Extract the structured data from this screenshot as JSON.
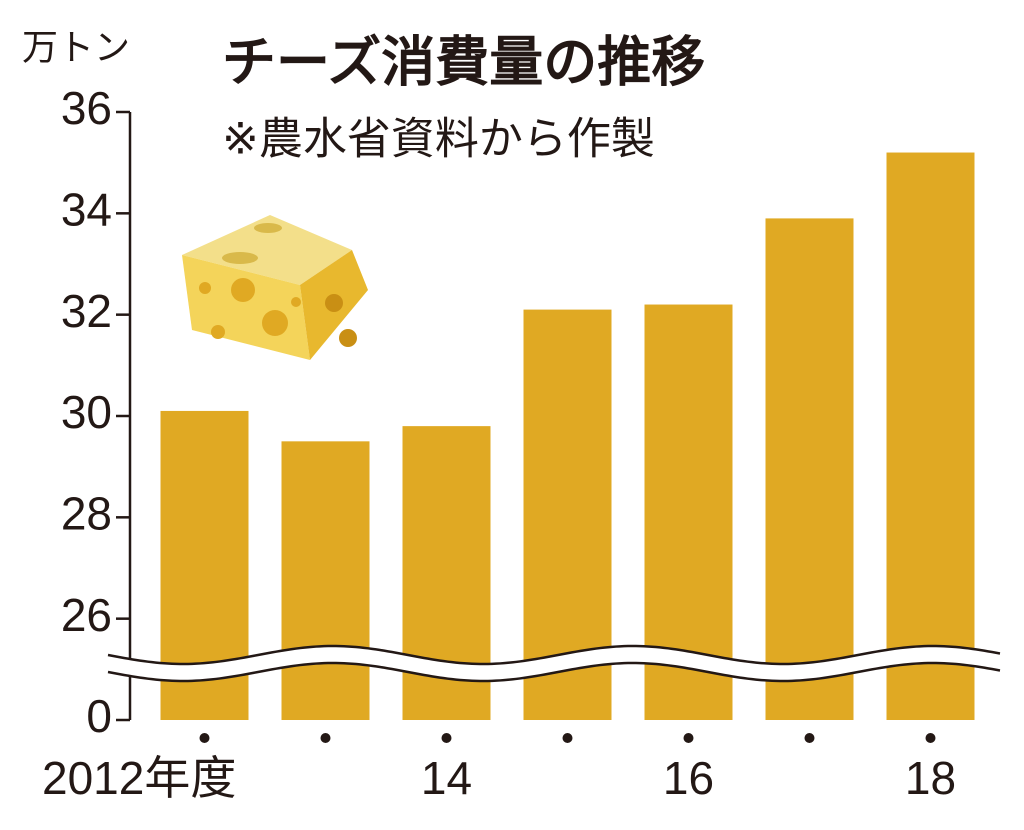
{
  "chart_data": {
    "type": "bar",
    "title": "チーズ消費量の推移",
    "subtitle": "※農水省資料から作製",
    "y_axis_label": "万トン",
    "categories": [
      "2012年度",
      null,
      "14",
      null,
      "16",
      null,
      "18"
    ],
    "values": [
      30.1,
      29.5,
      29.8,
      32.1,
      32.2,
      33.9,
      35.2
    ],
    "color": "#e0a923",
    "ylim": [
      24,
      36
    ],
    "yticks": [
      0,
      26,
      28,
      30,
      32,
      34,
      36
    ],
    "axis_break": true,
    "grid": false
  }
}
